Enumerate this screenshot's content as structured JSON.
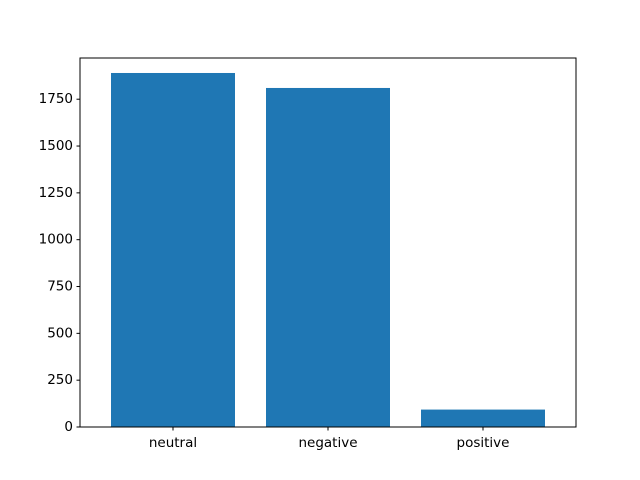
{
  "chart_data": {
    "type": "bar",
    "title": "",
    "xlabel": "",
    "ylabel": "",
    "categories": [
      "neutral",
      "negative",
      "positive"
    ],
    "values": [
      1890,
      1810,
      93
    ],
    "ylim": [
      0,
      1970
    ],
    "yticks": [
      0,
      250,
      500,
      750,
      1000,
      1250,
      1500,
      1750
    ],
    "ytick_labels": [
      "0",
      "250",
      "500",
      "750",
      "1000",
      "1250",
      "1500",
      "1750"
    ],
    "grid": false,
    "colors": {
      "bar": "#1f77b4",
      "axis": "#000000",
      "background": "#ffffff"
    }
  }
}
